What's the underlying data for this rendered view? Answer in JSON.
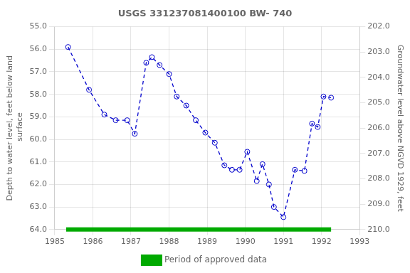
{
  "chart_data": {
    "type": "line",
    "title": "USGS 331237081400100 BW- 740",
    "y_label": "Depth to water level, feet below land\n surface",
    "y2_label": "Groundwater level above NGVD 1929, feet",
    "xlim": [
      1985,
      1993
    ],
    "xticks": [
      1985,
      1986,
      1987,
      1988,
      1989,
      1990,
      1991,
      1992,
      1993
    ],
    "ylim": [
      64.0,
      55.0
    ],
    "yticks": [
      {
        "value": 55.0,
        "label": "55.0"
      },
      {
        "value": 56.0,
        "label": "56.0"
      },
      {
        "value": 57.0,
        "label": "57.0"
      },
      {
        "value": 58.0,
        "label": "58.0"
      },
      {
        "value": 59.0,
        "label": "59.0"
      },
      {
        "value": 60.0,
        "label": "60.0"
      },
      {
        "value": 61.0,
        "label": "61.0"
      },
      {
        "value": 62.0,
        "label": "62.0"
      },
      {
        "value": 63.0,
        "label": "63.0"
      },
      {
        "value": 64.0,
        "label": "64.0"
      }
    ],
    "y2lim": [
      210.0,
      202.0
    ],
    "y2ticks": [
      {
        "value": 210.0,
        "label": "210.0"
      },
      {
        "value": 209.0,
        "label": "209.0"
      },
      {
        "value": 208.0,
        "label": "208.0"
      },
      {
        "value": 207.0,
        "label": "207.0"
      },
      {
        "value": 206.0,
        "label": "206.0"
      },
      {
        "value": 205.0,
        "label": "205.0"
      },
      {
        "value": 204.0,
        "label": "204.0"
      },
      {
        "value": 203.0,
        "label": "203.0"
      },
      {
        "value": 202.0,
        "label": "202.0"
      }
    ],
    "grid": true,
    "legend": "bottom",
    "series": [
      {
        "color": "#0000cc",
        "marker": "circle",
        "line_style": "dashed",
        "x": [
          1985.35,
          1985.9,
          1986.3,
          1986.6,
          1986.9,
          1987.1,
          1987.4,
          1987.55,
          1987.75,
          1988.0,
          1988.2,
          1988.45,
          1988.7,
          1988.95,
          1989.2,
          1989.45,
          1989.65,
          1989.85,
          1990.05,
          1990.3,
          1990.45,
          1990.62,
          1990.75,
          1991.0,
          1991.3,
          1991.55,
          1991.75,
          1991.9,
          1992.05,
          1992.25
        ],
        "values": [
          55.9,
          57.8,
          58.9,
          59.15,
          59.15,
          59.75,
          56.6,
          56.35,
          56.7,
          57.1,
          58.1,
          58.5,
          59.15,
          59.7,
          60.15,
          61.15,
          61.35,
          61.35,
          60.55,
          61.85,
          61.1,
          62.0,
          63.0,
          63.45,
          61.35,
          61.4,
          59.3,
          59.45,
          58.1,
          58.15
        ]
      },
      {
        "name": "Period of approved data",
        "color": "#00aa00",
        "marker": "none",
        "line_style": "solid",
        "x": [
          1985.3,
          1992.25
        ],
        "values": [
          64.0,
          64.0
        ]
      }
    ]
  }
}
